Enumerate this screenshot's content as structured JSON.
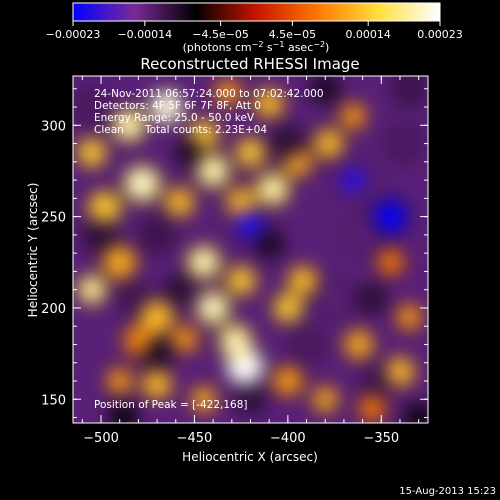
{
  "chart_data": {
    "type": "heatmap",
    "title": "Reconstructed RHESSI Image",
    "xlabel": "Heliocentric X (arcsec)",
    "ylabel": "Heliocentric Y (arcsec)",
    "xlim": [
      -515,
      -325
    ],
    "ylim": [
      137,
      327
    ],
    "x_ticks": [
      {
        "value": -500,
        "label": "−500"
      },
      {
        "value": -450,
        "label": "−450"
      },
      {
        "value": -400,
        "label": "−400"
      },
      {
        "value": -350,
        "label": "−350"
      }
    ],
    "y_ticks": [
      {
        "value": 150,
        "label": "150"
      },
      {
        "value": 200,
        "label": "200"
      },
      {
        "value": 250,
        "label": "250"
      },
      {
        "value": 300,
        "label": "300"
      }
    ],
    "colorbar": {
      "min": -0.00023,
      "max": 0.00023,
      "colormap": [
        "#0000ff",
        "#7a2a9a",
        "#000000",
        "#c81400",
        "#ff7800",
        "#ffe040",
        "#ffffff"
      ],
      "ticks": [
        {
          "value": -0.00023,
          "label": "−0.00023"
        },
        {
          "value": -0.00014,
          "label": "−0.00014"
        },
        {
          "value": -4.5e-05,
          "label": "−4.5e−05"
        },
        {
          "value": 4.5e-05,
          "label": "4.5e−05"
        },
        {
          "value": 0.00014,
          "label": "0.00014"
        },
        {
          "value": 0.00023,
          "label": "0.00023"
        }
      ],
      "unit_text": "(photons cm",
      "unit_sup1": "−2",
      "unit_mid": " s",
      "unit_sup2": "−1",
      "unit_end": " asec",
      "unit_sup3": "−2",
      "unit_close": ")"
    },
    "peak": [
      -422,
      168
    ],
    "blobs": [
      {
        "x": -423,
        "y": 168,
        "v": 1.0,
        "r": 10
      },
      {
        "x": -428,
        "y": 182,
        "v": 0.7,
        "r": 9
      },
      {
        "x": -470,
        "y": 195,
        "v": 0.55,
        "r": 9
      },
      {
        "x": -480,
        "y": 182,
        "v": 0.4,
        "r": 8
      },
      {
        "x": -490,
        "y": 225,
        "v": 0.5,
        "r": 9
      },
      {
        "x": -505,
        "y": 210,
        "v": 0.65,
        "r": 8
      },
      {
        "x": -498,
        "y": 255,
        "v": 0.6,
        "r": 9
      },
      {
        "x": -478,
        "y": 268,
        "v": 0.75,
        "r": 10
      },
      {
        "x": -458,
        "y": 258,
        "v": 0.55,
        "r": 8
      },
      {
        "x": -505,
        "y": 285,
        "v": 0.6,
        "r": 8
      },
      {
        "x": -485,
        "y": 300,
        "v": 0.7,
        "r": 9
      },
      {
        "x": -465,
        "y": 310,
        "v": 0.9,
        "r": 9
      },
      {
        "x": -445,
        "y": 295,
        "v": 0.6,
        "r": 8
      },
      {
        "x": -440,
        "y": 275,
        "v": 0.7,
        "r": 9
      },
      {
        "x": -425,
        "y": 258,
        "v": 0.55,
        "r": 8
      },
      {
        "x": -420,
        "y": 285,
        "v": 0.6,
        "r": 8
      },
      {
        "x": -408,
        "y": 265,
        "v": 0.65,
        "r": 9
      },
      {
        "x": -395,
        "y": 280,
        "v": 0.5,
        "r": 8
      },
      {
        "x": -378,
        "y": 290,
        "v": 0.55,
        "r": 8
      },
      {
        "x": -365,
        "y": 305,
        "v": 0.45,
        "r": 7
      },
      {
        "x": -445,
        "y": 225,
        "v": 0.7,
        "r": 9
      },
      {
        "x": -425,
        "y": 215,
        "v": 0.6,
        "r": 8
      },
      {
        "x": -440,
        "y": 200,
        "v": 0.75,
        "r": 9
      },
      {
        "x": -455,
        "y": 183,
        "v": 0.45,
        "r": 7
      },
      {
        "x": -400,
        "y": 200,
        "v": 0.6,
        "r": 8
      },
      {
        "x": -392,
        "y": 215,
        "v": 0.55,
        "r": 8
      },
      {
        "x": -362,
        "y": 180,
        "v": 0.5,
        "r": 8
      },
      {
        "x": -340,
        "y": 165,
        "v": 0.55,
        "r": 8
      },
      {
        "x": -335,
        "y": 195,
        "v": 0.45,
        "r": 7
      },
      {
        "x": -345,
        "y": 225,
        "v": 0.35,
        "r": 7
      },
      {
        "x": -470,
        "y": 158,
        "v": 0.55,
        "r": 8
      },
      {
        "x": -490,
        "y": 160,
        "v": 0.45,
        "r": 7
      },
      {
        "x": -445,
        "y": 150,
        "v": 0.5,
        "r": 7
      },
      {
        "x": -400,
        "y": 160,
        "v": 0.45,
        "r": 8
      },
      {
        "x": -380,
        "y": 150,
        "v": 0.5,
        "r": 7
      },
      {
        "x": -355,
        "y": 145,
        "v": 0.35,
        "r": 7
      },
      {
        "x": -410,
        "y": 312,
        "v": 0.55,
        "r": 8
      },
      {
        "x": -432,
        "y": 318,
        "v": 0.45,
        "r": 7
      },
      {
        "x": -505,
        "y": 310,
        "v": -0.55,
        "r": 8
      },
      {
        "x": -500,
        "y": 240,
        "v": -0.45,
        "r": 8
      },
      {
        "x": -470,
        "y": 240,
        "v": -0.5,
        "r": 8
      },
      {
        "x": -420,
        "y": 245,
        "v": -0.75,
        "r": 9
      },
      {
        "x": -452,
        "y": 285,
        "v": -0.4,
        "r": 7
      },
      {
        "x": -400,
        "y": 290,
        "v": -0.45,
        "r": 8
      },
      {
        "x": -365,
        "y": 270,
        "v": -0.7,
        "r": 9
      },
      {
        "x": -345,
        "y": 250,
        "v": -0.95,
        "r": 9
      },
      {
        "x": -360,
        "y": 240,
        "v": -0.6,
        "r": 8
      },
      {
        "x": -338,
        "y": 290,
        "v": -0.55,
        "r": 8
      },
      {
        "x": -375,
        "y": 205,
        "v": -0.6,
        "r": 8
      },
      {
        "x": -355,
        "y": 205,
        "v": -0.45,
        "r": 7
      },
      {
        "x": -410,
        "y": 235,
        "v": -0.4,
        "r": 7
      },
      {
        "x": -458,
        "y": 210,
        "v": -0.45,
        "r": 7
      },
      {
        "x": -482,
        "y": 205,
        "v": -0.5,
        "r": 7
      },
      {
        "x": -390,
        "y": 180,
        "v": -0.55,
        "r": 8
      },
      {
        "x": -352,
        "y": 160,
        "v": -0.5,
        "r": 7
      },
      {
        "x": -420,
        "y": 150,
        "v": -0.45,
        "r": 7
      },
      {
        "x": -470,
        "y": 175,
        "v": -0.4,
        "r": 7
      },
      {
        "x": -330,
        "y": 140,
        "v": -0.35,
        "r": 7
      },
      {
        "x": -335,
        "y": 320,
        "v": -0.5,
        "r": 8
      },
      {
        "x": -380,
        "y": 320,
        "v": -0.4,
        "r": 7
      },
      {
        "x": -488,
        "y": 140,
        "v": -0.35,
        "r": 7
      }
    ]
  },
  "annotations": {
    "time_range": "24-Nov-2011 06:57:24.000 to 07:02:42.000",
    "detectors": "Detectors: 4F 5F 6F 7F 8F, Att 0",
    "energy": "Energy Range: 25.0 - 50.0 keV",
    "clean_label": "Clean",
    "total_counts": "Total counts: 2.23E+04",
    "peak_text": "Position of Peak = [-422,168]"
  },
  "footer": {
    "timestamp": "15-Aug-2013 15:23"
  }
}
